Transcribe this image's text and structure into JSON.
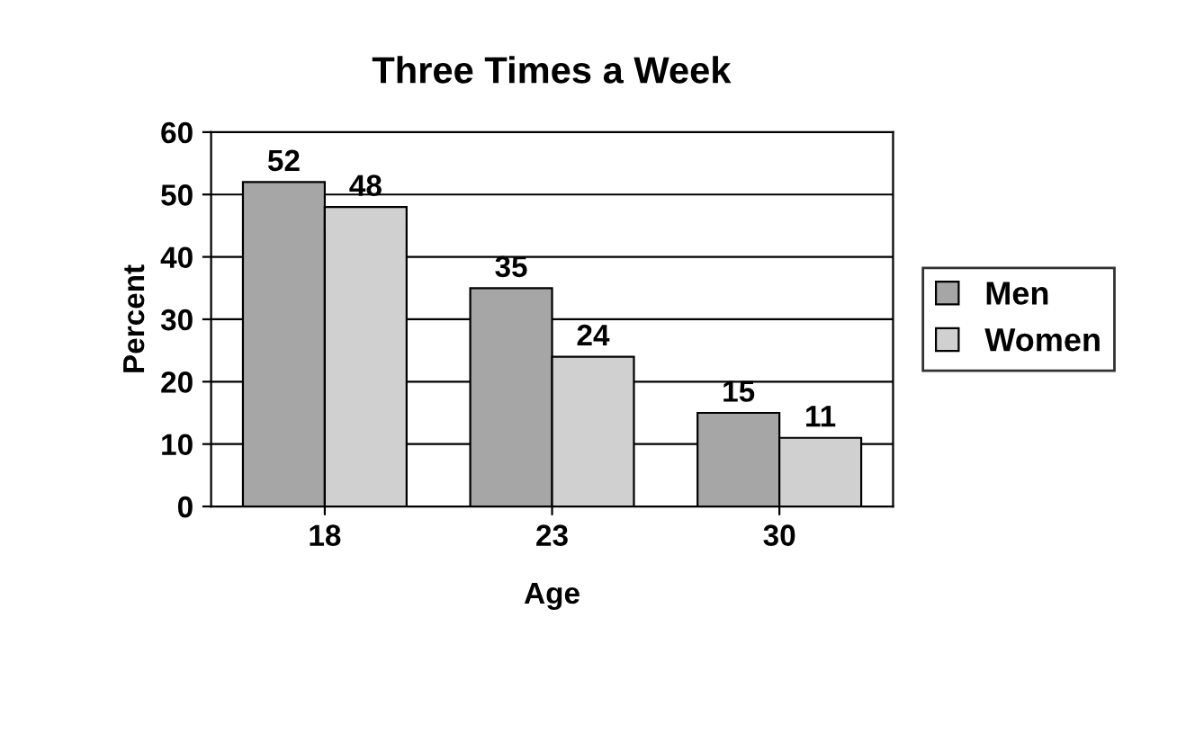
{
  "chart_data": {
    "type": "bar",
    "title": "Three Times a Week",
    "xlabel": "Age",
    "ylabel": "Percent",
    "categories": [
      "18",
      "23",
      "30"
    ],
    "series": [
      {
        "name": "Men",
        "color": "#a6a6a6",
        "values": [
          52,
          35,
          15
        ]
      },
      {
        "name": "Women",
        "color": "#d0d0d0",
        "values": [
          48,
          24,
          11
        ]
      }
    ],
    "ylim": [
      0,
      60
    ],
    "yticks": [
      0,
      10,
      20,
      30,
      40,
      50,
      60
    ],
    "grid": "y",
    "legend": "right",
    "data_labels": true
  }
}
